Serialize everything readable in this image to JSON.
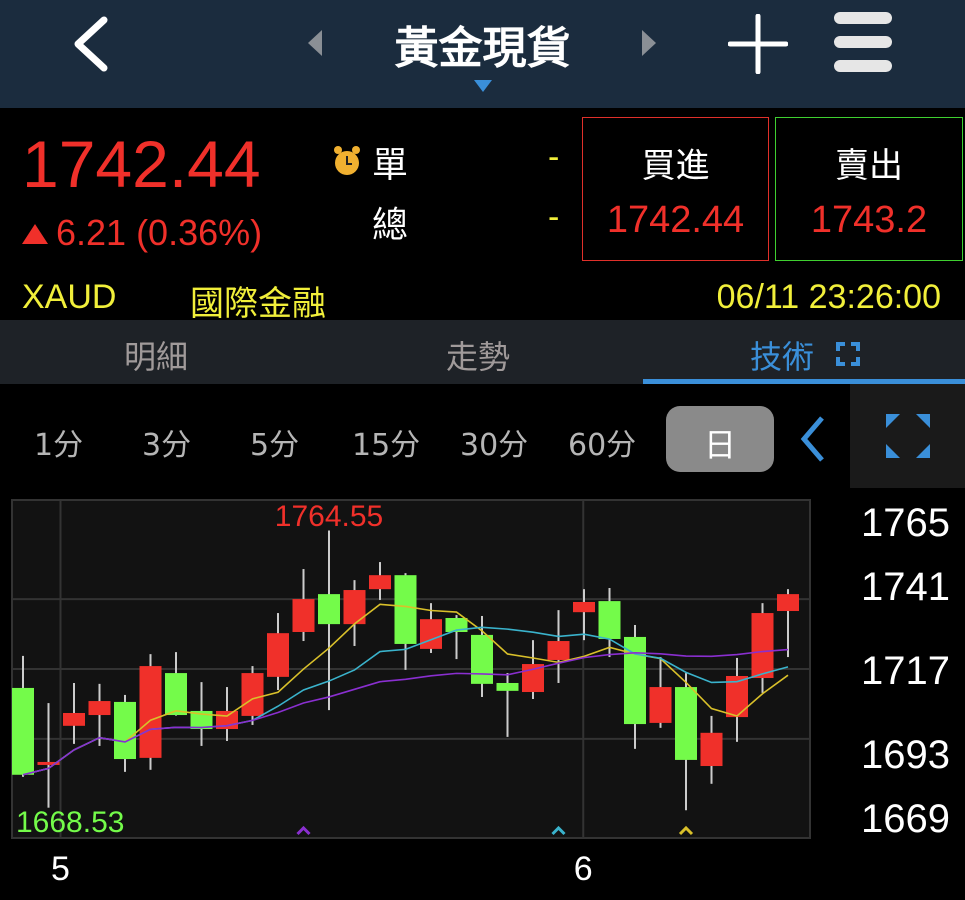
{
  "header": {
    "title": "黃金現貨",
    "back_icon": "chevron-left-icon",
    "prev_icon": "triangle-left-icon",
    "next_icon": "triangle-right-icon",
    "dropdown_icon": "triangle-down-icon",
    "add_icon": "plus-icon",
    "menu_icon": "hamburger-icon"
  },
  "quote": {
    "price": "1742.44",
    "change": "6.21 (0.36%)",
    "change_direction": "up",
    "alarm_icon": "alarm-clock-icon",
    "single_label": "單",
    "single_value": "-",
    "total_label": "總",
    "total_value": "-",
    "bid_label": "買進",
    "bid_value": "1742.44",
    "ask_label": "賣出",
    "ask_value": "1743.2",
    "symbol": "XAUD",
    "category": "國際金融",
    "datetime": "06/11 23:26:00"
  },
  "tabs": [
    {
      "label": "明細",
      "active": false
    },
    {
      "label": "走勢",
      "active": false
    },
    {
      "label": "技術",
      "active": true
    }
  ],
  "periods": [
    {
      "label": "1分"
    },
    {
      "label": "3分"
    },
    {
      "label": "5分"
    },
    {
      "label": "15分"
    },
    {
      "label": "30分"
    },
    {
      "label": "60分"
    },
    {
      "label": "日",
      "active": true
    }
  ],
  "colors": {
    "up": "#f0302a",
    "down": "#74fb4a",
    "accent": "#3a8fd9",
    "ma_short": "#d9c02a",
    "ma_mid": "#3ab3cc",
    "ma_long": "#8a2fd0"
  },
  "chart_data": {
    "type": "candlestick",
    "ylim": [
      1659,
      1775
    ],
    "y_ticks": [
      "1765",
      "1741",
      "1717",
      "1693",
      "1669"
    ],
    "x_labels": [
      {
        "label": "5",
        "index": 1
      },
      {
        "label": "6",
        "index": 22
      }
    ],
    "max_label": "1764.55",
    "min_label": "1668.53",
    "grid": true,
    "candles": [
      [
        1710.5,
        1721.5,
        1680.0,
        1680.7
      ],
      [
        1685.1,
        1705.3,
        1669.4,
        1685.1
      ],
      [
        1697.5,
        1712.2,
        1691.3,
        1701.9
      ],
      [
        1701.2,
        1711.9,
        1690.6,
        1706.0
      ],
      [
        1705.7,
        1708.1,
        1681.7,
        1686.1
      ],
      [
        1686.5,
        1722.1,
        1682.4,
        1718.0
      ],
      [
        1715.6,
        1722.8,
        1701.0,
        1701.2
      ],
      [
        1702.6,
        1712.5,
        1690.6,
        1696.4
      ],
      [
        1696.4,
        1710.8,
        1692.3,
        1702.6
      ],
      [
        1700.9,
        1718.0,
        1697.8,
        1715.6
      ],
      [
        1714.3,
        1736.2,
        1709.8,
        1729.3
      ],
      [
        1729.7,
        1751.3,
        1726.6,
        1741.0
      ],
      [
        1742.7,
        1764.55,
        1702.9,
        1732.4
      ],
      [
        1732.4,
        1747.5,
        1724.9,
        1744.1
      ],
      [
        1744.4,
        1753.7,
        1740.7,
        1749.2
      ],
      [
        1749.2,
        1749.9,
        1716.7,
        1725.6
      ],
      [
        1723.9,
        1739.6,
        1722.5,
        1734.1
      ],
      [
        1734.5,
        1735.5,
        1720.4,
        1729.7
      ],
      [
        1728.7,
        1735.2,
        1707.4,
        1711.9
      ],
      [
        1712.2,
        1715.6,
        1693.7,
        1709.5
      ],
      [
        1709.1,
        1726.9,
        1706.7,
        1718.7
      ],
      [
        1720.1,
        1737.2,
        1712.2,
        1726.6
      ],
      [
        1736.5,
        1744.4,
        1726.9,
        1740.0
      ],
      [
        1740.3,
        1744.8,
        1721.1,
        1727.3
      ],
      [
        1728.0,
        1732.1,
        1689.6,
        1698.1
      ],
      [
        1698.5,
        1721.1,
        1696.8,
        1710.8
      ],
      [
        1710.8,
        1715.6,
        1668.53,
        1685.8
      ],
      [
        1683.7,
        1700.9,
        1677.6,
        1695.1
      ],
      [
        1700.5,
        1720.8,
        1692.0,
        1714.6
      ],
      [
        1713.9,
        1739.6,
        1708.8,
        1736.2
      ],
      [
        1736.9,
        1744.4,
        1721.1,
        1742.7
      ]
    ],
    "candle_fields": [
      "open",
      "high",
      "low",
      "close"
    ],
    "moving_averages": [
      {
        "period": 5,
        "color": "#d9c02a"
      },
      {
        "period": 10,
        "color": "#3ab3cc"
      },
      {
        "period": 20,
        "color": "#8a2fd0"
      }
    ],
    "markers": [
      {
        "index": 11,
        "color": "#8a2fd0"
      },
      {
        "index": 21,
        "color": "#3ab3cc"
      },
      {
        "index": 26,
        "color": "#d9c02a"
      }
    ]
  }
}
